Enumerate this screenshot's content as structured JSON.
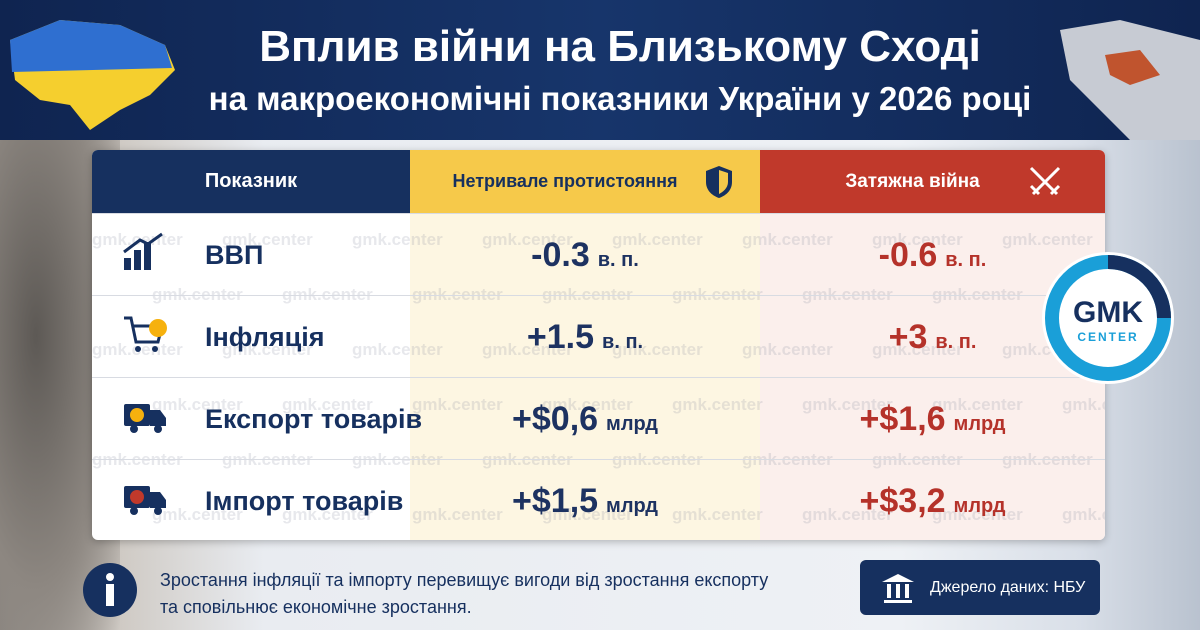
{
  "header": {
    "title_line1": "Вплив війни на Близькому Сході",
    "title_line2": "на макроекономічні показники України у 2026 році"
  },
  "table": {
    "columns": [
      "Показник",
      "Нетривале протистояння",
      "Затяжна війна"
    ],
    "rows": [
      {
        "label": "ВВП",
        "short": {
          "value": "-0.3",
          "unit": "в. п."
        },
        "long": {
          "value": "-0.6",
          "unit": "в. п."
        }
      },
      {
        "label": "Інфляція",
        "short": {
          "value": "+1.5",
          "unit": "в. п."
        },
        "long": {
          "value": "+3",
          "unit": "в. п."
        }
      },
      {
        "label": "Експорт товарів",
        "short": {
          "value": "+$0,6",
          "unit": "млрд"
        },
        "long": {
          "value": "+$1,6",
          "unit": "млрд"
        }
      },
      {
        "label": "Імпорт товарів",
        "short": {
          "value": "+$1,5",
          "unit": "млрд"
        },
        "long": {
          "value": "+$3,2",
          "unit": "млрд"
        }
      }
    ]
  },
  "footer": {
    "note_line1": "Зростання інфляції та імпорту перевищує вигоди від зростання експорту",
    "note_line2": "та сповільнює економічне зростання.",
    "source": "Джерело даних: НБУ"
  },
  "logo": {
    "top": "GMK",
    "bottom": "CENTER"
  },
  "watermark": "gmk.center"
}
